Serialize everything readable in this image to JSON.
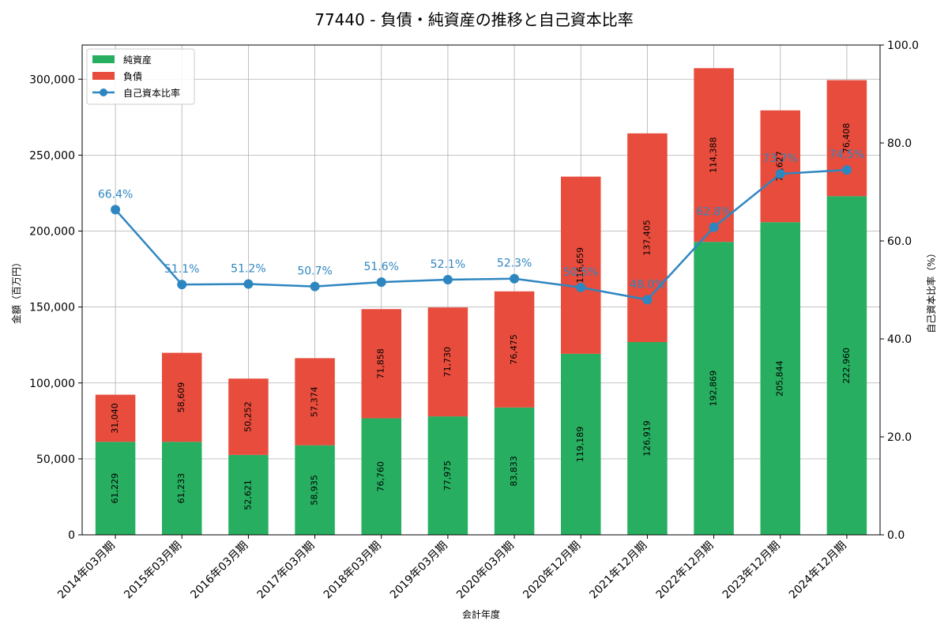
{
  "chart_data": {
    "type": "bar",
    "title": "77440 - 負債・純資産の推移と自己資本比率",
    "xlabel": "会計年度",
    "ylabel": "金額（百万円）",
    "y2label": "自己資本比率（%）",
    "ylim": [
      0,
      322500
    ],
    "y2lim": [
      0,
      100
    ],
    "yticks": [
      0,
      50000,
      100000,
      150000,
      200000,
      250000,
      300000
    ],
    "y2ticks": [
      0,
      20,
      40,
      60,
      80,
      100
    ],
    "grid": true,
    "legend_position": "top-left",
    "categories": [
      "2014年03月期",
      "2015年03月期",
      "2016年03月期",
      "2017年03月期",
      "2018年03月期",
      "2019年03月期",
      "2020年03月期",
      "2020年12月期",
      "2021年12月期",
      "2022年12月期",
      "2023年12月期",
      "2024年12月期"
    ],
    "series": [
      {
        "name": "純資産",
        "kind": "bar",
        "stack": "total",
        "color": "#27ae60",
        "values": [
          61229,
          61233,
          52621,
          58935,
          76760,
          77975,
          83833,
          119189,
          126919,
          192869,
          205844,
          222960
        ]
      },
      {
        "name": "負債",
        "kind": "bar",
        "stack": "total",
        "color": "#e74c3c",
        "values": [
          31040,
          58609,
          50252,
          57374,
          71858,
          71730,
          76475,
          116659,
          137405,
          114388,
          73627,
          76408
        ]
      },
      {
        "name": "自己資本比率",
        "kind": "line",
        "axis": "right",
        "color": "#2e86c1",
        "values": [
          66.4,
          51.1,
          51.2,
          50.7,
          51.6,
          52.1,
          52.3,
          50.5,
          48.0,
          62.8,
          73.7,
          74.5
        ]
      }
    ]
  }
}
